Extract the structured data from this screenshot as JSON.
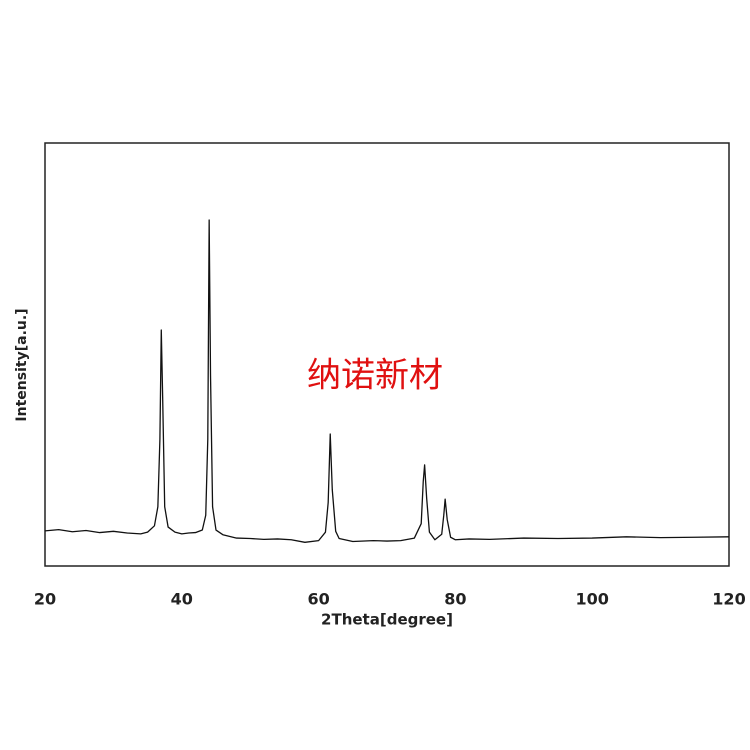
{
  "chart_data": {
    "type": "line",
    "x_label": "2Theta[degree]",
    "y_label": "Intensity[a.u.]",
    "watermark": "纳诺新材",
    "x": [
      20,
      22,
      24,
      26,
      28,
      30,
      32,
      34,
      35,
      36,
      36.5,
      36.8,
      37.0,
      37.2,
      37.5,
      38,
      39,
      40,
      41,
      42,
      43,
      43.5,
      43.8,
      44.0,
      44.2,
      44.5,
      45,
      46,
      48,
      50,
      52,
      54,
      56,
      58,
      60,
      61,
      61.4,
      61.7,
      62.0,
      62.5,
      63,
      65,
      68,
      70,
      72,
      74,
      75,
      75.3,
      75.5,
      75.8,
      76.2,
      77,
      78,
      78.3,
      78.5,
      78.8,
      79.3,
      80,
      82,
      85,
      90,
      95,
      100,
      105,
      110,
      115,
      120
    ],
    "values": [
      8.3,
      8.6,
      8.1,
      8.4,
      7.9,
      8.2,
      7.8,
      7.6,
      8.0,
      9.5,
      14,
      30,
      55.8,
      40,
      14,
      9.2,
      8.0,
      7.6,
      7.8,
      7.9,
      8.5,
      12,
      30,
      81.8,
      45,
      14,
      8.5,
      7.4,
      6.6,
      6.5,
      6.3,
      6.4,
      6.2,
      5.6,
      6.0,
      8.0,
      15,
      31.2,
      18,
      8.2,
      6.5,
      5.8,
      6.0,
      5.9,
      6.0,
      6.6,
      10,
      20,
      23.9,
      16,
      8.0,
      6.2,
      7.5,
      12,
      15.8,
      11,
      6.8,
      6.2,
      6.4,
      6.3,
      6.6,
      6.5,
      6.6,
      6.9,
      6.7,
      6.8,
      6.9
    ],
    "color": "#111111",
    "xlim": [
      20,
      120
    ],
    "xticks": [
      20,
      40,
      60,
      80,
      100,
      120
    ],
    "ylim": [
      0,
      100
    ],
    "grid": false
  }
}
